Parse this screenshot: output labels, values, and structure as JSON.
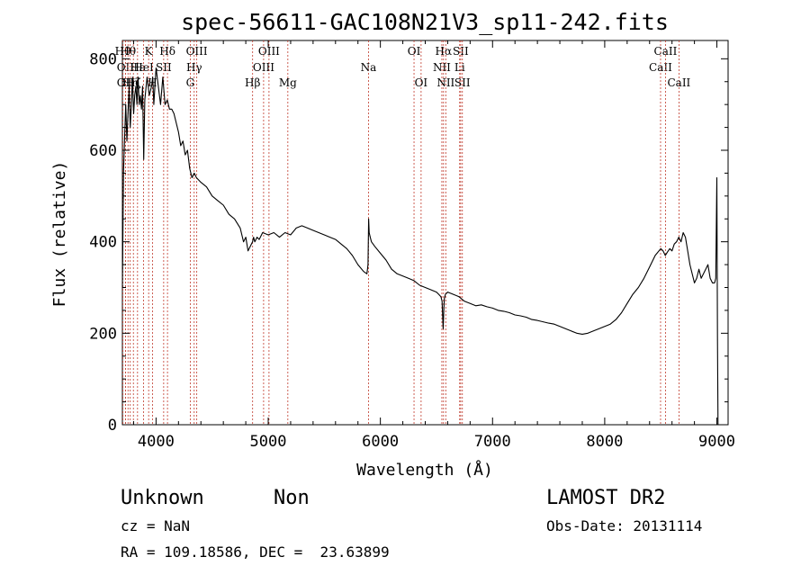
{
  "chart_data": {
    "type": "line",
    "title": "spec-56611-GAC108N21V3_sp11-242.fits",
    "xlabel": "Wavelength (Å)",
    "ylabel": "Flux (relative)",
    "xlim": [
      3700,
      9100
    ],
    "ylim": [
      0,
      840
    ],
    "xticks": [
      4000,
      5000,
      6000,
      7000,
      8000,
      9000
    ],
    "yticks": [
      0,
      200,
      400,
      600,
      800
    ],
    "grid": false,
    "series": [
      {
        "color": "#000000",
        "x": [
          3700,
          3710,
          3720,
          3730,
          3740,
          3750,
          3760,
          3770,
          3780,
          3790,
          3800,
          3810,
          3820,
          3830,
          3840,
          3850,
          3860,
          3870,
          3880,
          3890,
          3900,
          3920,
          3940,
          3960,
          3970,
          3980,
          4000,
          4020,
          4040,
          4060,
          4080,
          4100,
          4120,
          4140,
          4160,
          4180,
          4200,
          4220,
          4240,
          4260,
          4280,
          4300,
          4320,
          4340,
          4360,
          4400,
          4450,
          4500,
          4550,
          4600,
          4650,
          4700,
          4750,
          4780,
          4800,
          4820,
          4840,
          4860,
          4870,
          4880,
          4900,
          4920,
          4950,
          5000,
          5050,
          5100,
          5150,
          5200,
          5250,
          5300,
          5350,
          5400,
          5450,
          5500,
          5550,
          5600,
          5650,
          5700,
          5750,
          5800,
          5850,
          5880,
          5890,
          5895,
          5900,
          5910,
          5920,
          5950,
          6000,
          6050,
          6100,
          6150,
          6200,
          6250,
          6300,
          6350,
          6400,
          6450,
          6500,
          6520,
          6540,
          6550,
          6560,
          6565,
          6570,
          6580,
          6600,
          6650,
          6700,
          6750,
          6800,
          6850,
          6900,
          6950,
          7000,
          7050,
          7100,
          7150,
          7200,
          7250,
          7300,
          7350,
          7400,
          7450,
          7500,
          7550,
          7600,
          7650,
          7700,
          7750,
          7800,
          7850,
          7900,
          7950,
          8000,
          8050,
          8100,
          8150,
          8200,
          8250,
          8300,
          8350,
          8400,
          8450,
          8500,
          8520,
          8540,
          8560,
          8580,
          8600,
          8620,
          8640,
          8660,
          8680,
          8700,
          8720,
          8740,
          8760,
          8780,
          8800,
          8820,
          8840,
          8860,
          8880,
          8900,
          8920,
          8940,
          8960,
          8980,
          8990,
          9000,
          9005,
          9010
        ],
        "y": [
          300,
          550,
          630,
          700,
          620,
          680,
          740,
          650,
          700,
          760,
          680,
          720,
          740,
          700,
          760,
          700,
          720,
          690,
          740,
          580,
          710,
          760,
          720,
          740,
          760,
          700,
          780,
          740,
          700,
          760,
          700,
          710,
          690,
          690,
          680,
          660,
          640,
          610,
          620,
          590,
          600,
          560,
          540,
          550,
          540,
          530,
          520,
          500,
          490,
          480,
          460,
          450,
          430,
          400,
          410,
          380,
          390,
          400,
          410,
          400,
          410,
          405,
          420,
          415,
          420,
          410,
          420,
          415,
          430,
          435,
          430,
          425,
          420,
          415,
          410,
          405,
          395,
          385,
          370,
          350,
          335,
          330,
          350,
          450,
          420,
          410,
          400,
          390,
          375,
          360,
          340,
          330,
          325,
          320,
          315,
          305,
          300,
          295,
          290,
          285,
          280,
          270,
          210,
          250,
          275,
          285,
          290,
          285,
          280,
          270,
          265,
          260,
          262,
          258,
          255,
          250,
          248,
          245,
          240,
          238,
          235,
          230,
          228,
          225,
          222,
          220,
          215,
          210,
          205,
          200,
          198,
          200,
          205,
          210,
          215,
          220,
          230,
          245,
          265,
          285,
          300,
          320,
          345,
          370,
          385,
          380,
          370,
          378,
          385,
          380,
          395,
          400,
          410,
          400,
          420,
          410,
          380,
          350,
          330,
          310,
          320,
          340,
          320,
          330,
          340,
          350,
          320,
          310,
          310,
          320,
          540,
          190,
          0
        ]
      }
    ],
    "line_labels": [
      {
        "x": 3704,
        "label": "Hθ",
        "row": 0
      },
      {
        "x": 3727,
        "label": "OII",
        "row": 1
      },
      {
        "x": 3727,
        "label": "OII",
        "row": 2
      },
      {
        "x": 3750,
        "label": "Hθ",
        "row": 0
      },
      {
        "x": 3770,
        "label": "Hη",
        "row": 2
      },
      {
        "x": 3798,
        "label": "Hζ",
        "row": 2
      },
      {
        "x": 3835,
        "label": "Hε",
        "row": 1
      },
      {
        "x": 3889,
        "label": "HeI",
        "row": 1
      },
      {
        "x": 3934,
        "label": "K",
        "row": 0
      },
      {
        "x": 3968,
        "label": "H",
        "row": 2
      },
      {
        "x": 4068,
        "label": "SII",
        "row": 1
      },
      {
        "x": 4102,
        "label": "Hδ",
        "row": 0
      },
      {
        "x": 4305,
        "label": "G",
        "row": 2
      },
      {
        "x": 4340,
        "label": "Hγ",
        "row": 1
      },
      {
        "x": 4363,
        "label": "OIII",
        "row": 0
      },
      {
        "x": 4861,
        "label": "Hβ",
        "row": 2
      },
      {
        "x": 4959,
        "label": "OIII",
        "row": 1
      },
      {
        "x": 5007,
        "label": "OIII",
        "row": 0
      },
      {
        "x": 5175,
        "label": "Mg",
        "row": 2
      },
      {
        "x": 5894,
        "label": "Na",
        "row": 1
      },
      {
        "x": 6300,
        "label": "OI",
        "row": 0
      },
      {
        "x": 6363,
        "label": "OI",
        "row": 2
      },
      {
        "x": 6548,
        "label": "NII",
        "row": 1
      },
      {
        "x": 6563,
        "label": "Hα",
        "row": 0
      },
      {
        "x": 6583,
        "label": "NII",
        "row": 2
      },
      {
        "x": 6707,
        "label": "Li",
        "row": 1
      },
      {
        "x": 6716,
        "label": "SII",
        "row": 0
      },
      {
        "x": 6731,
        "label": "SII",
        "row": 2
      },
      {
        "x": 8498,
        "label": "CaII",
        "row": 1
      },
      {
        "x": 8542,
        "label": "CaII",
        "row": 0
      },
      {
        "x": 8662,
        "label": "CaII",
        "row": 2
      }
    ]
  },
  "footer": {
    "classification": "Unknown",
    "subclass": "Non",
    "survey": "LAMOST DR2",
    "cz": "cz = NaN",
    "obs_date": "Obs-Date: 20131114",
    "coords": "RA = 109.18586, DEC =  23.63899"
  }
}
